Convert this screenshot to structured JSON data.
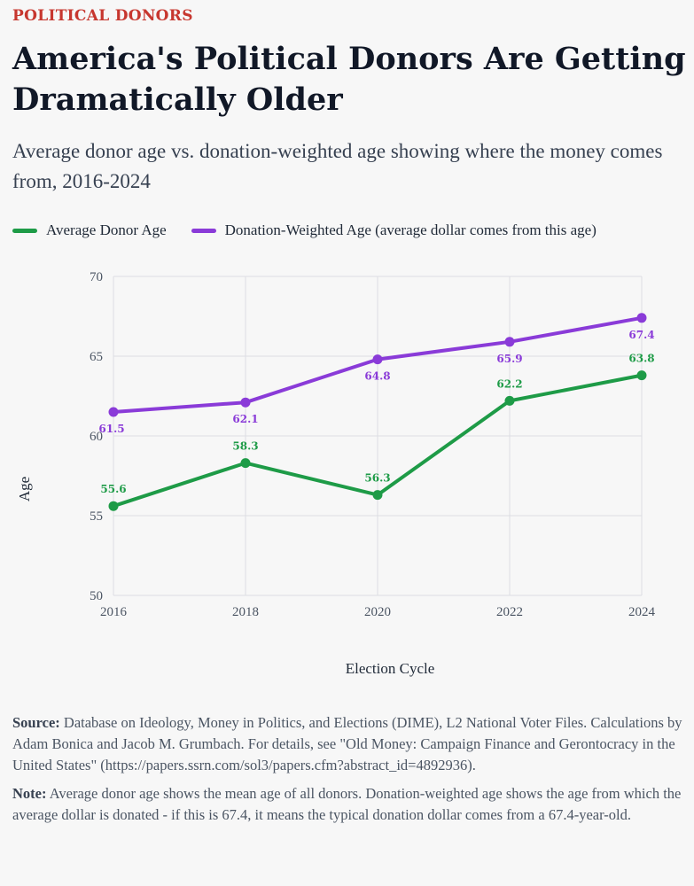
{
  "header": {
    "kicker": "POLITICAL DONORS",
    "title": "America's Political Donors Are Getting Dramatically Older",
    "subtitle": "Average donor age vs. donation-weighted age showing where the money comes from, 2016-2024"
  },
  "colors": {
    "kicker": "#c7372f",
    "green": "#1e9b47",
    "purple": "#8a3bd8",
    "grid": "#dcdde3"
  },
  "chart_data": {
    "type": "line",
    "categories": [
      "2016",
      "2018",
      "2020",
      "2022",
      "2024"
    ],
    "x": [
      2016,
      2018,
      2020,
      2022,
      2024
    ],
    "series": [
      {
        "name": "Average Donor Age",
        "color": "#1e9b47",
        "values": [
          55.6,
          58.3,
          56.3,
          62.2,
          63.8
        ],
        "labels": [
          "55.6",
          "58.3",
          "56.3",
          "62.2",
          "63.8"
        ]
      },
      {
        "name": "Donation-Weighted Age (average dollar comes from this age)",
        "color": "#8a3bd8",
        "values": [
          61.5,
          62.1,
          64.8,
          65.9,
          67.4
        ],
        "labels": [
          "61.5",
          "62.1",
          "64.8",
          "65.9",
          "67.4"
        ]
      }
    ],
    "ylim": [
      50,
      70
    ],
    "yticks": [
      "50",
      "55",
      "60",
      "65",
      "70"
    ],
    "xlabel": "Election Cycle",
    "ylabel": "Age",
    "grid": true,
    "legend": "top-left"
  },
  "footer": {
    "source_label": "Source:",
    "source_text": "Database on Ideology, Money in Politics, and Elections (DIME), L2 National Voter Files. Calculations by Adam Bonica and Jacob M. Grumbach. For details, see \"Old Money: Campaign Finance and Gerontocracy in the United States\" (https://papers.ssrn.com/sol3/papers.cfm?abstract_id=4892936).",
    "note_label": "Note:",
    "note_text": "Average donor age shows the mean age of all donors. Donation-weighted age shows the age from which the average dollar is donated - if this is 67.4, it means the typical donation dollar comes from a 67.4-year-old."
  }
}
